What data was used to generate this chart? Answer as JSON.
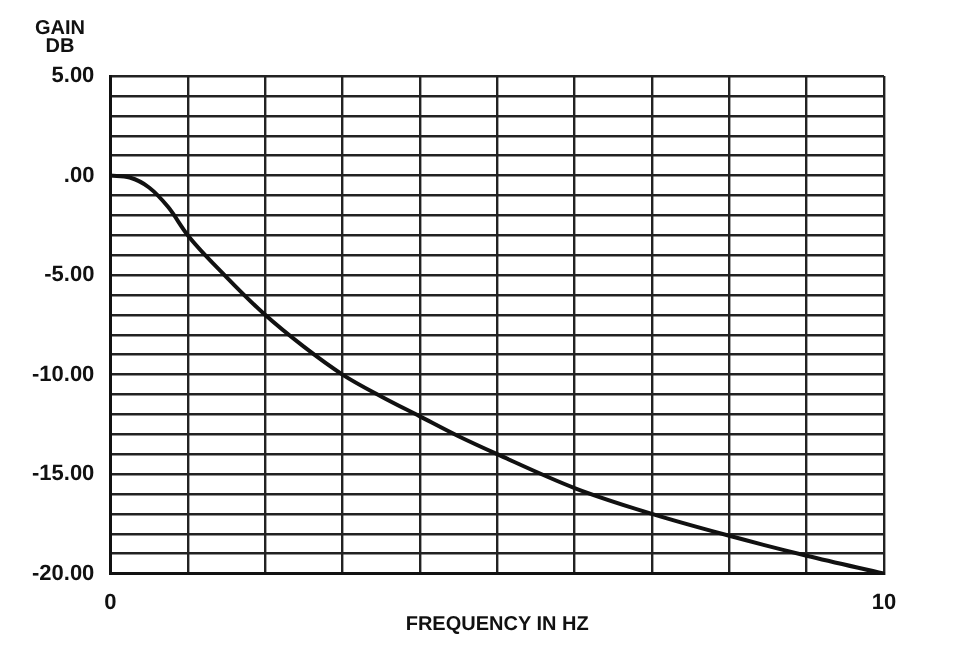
{
  "chart_data": {
    "type": "line",
    "xlabel": "FREQUENCY IN HZ",
    "ylabel": "GAIN DB",
    "x": [
      0,
      0.25,
      0.5,
      0.75,
      1,
      1.5,
      2,
      2.5,
      3,
      3.5,
      4,
      4.5,
      5,
      6,
      7,
      8,
      9,
      10
    ],
    "series": [
      {
        "color": "#111111",
        "values": [
          0,
          -0.1,
          -0.6,
          -1.6,
          -3,
          -5.1,
          -7,
          -8.6,
          -10,
          -11.1,
          -12.1,
          -13.1,
          -14,
          -15.7,
          -17,
          -18.1,
          -19.1,
          -20
        ]
      }
    ],
    "xlim": [
      0,
      10
    ],
    "ylim": [
      -20,
      5
    ],
    "xticks": [
      0,
      {
        "value": 1,
        "label": null
      },
      {
        "value": 2,
        "label": null
      },
      {
        "value": 3,
        "label": null
      },
      {
        "value": 4,
        "label": null
      },
      {
        "value": 5,
        "label": null
      },
      {
        "value": 6,
        "label": null
      },
      {
        "value": 7,
        "label": null
      },
      {
        "value": 8,
        "label": null
      },
      {
        "value": 9,
        "label": null
      },
      10
    ],
    "yticks": [
      {
        "value": -20,
        "label": "-20.00"
      },
      {
        "value": -19,
        "label": null
      },
      {
        "value": -18,
        "label": null
      },
      {
        "value": -17,
        "label": null
      },
      {
        "value": -16,
        "label": null
      },
      {
        "value": -15,
        "label": "-15.00"
      },
      {
        "value": -14,
        "label": null
      },
      {
        "value": -13,
        "label": null
      },
      {
        "value": -12,
        "label": null
      },
      {
        "value": -11,
        "label": null
      },
      {
        "value": -10,
        "label": "-10.00"
      },
      {
        "value": -9,
        "label": null
      },
      {
        "value": -8,
        "label": null
      },
      {
        "value": -7,
        "label": null
      },
      {
        "value": -6,
        "label": null
      },
      {
        "value": -5,
        "label": "-5.00"
      },
      {
        "value": -4,
        "label": null
      },
      {
        "value": -3,
        "label": null
      },
      {
        "value": -2,
        "label": null
      },
      {
        "value": -1,
        "label": null
      },
      {
        "value": 0,
        "label": ".00"
      },
      {
        "value": 1,
        "label": null
      },
      {
        "value": 2,
        "label": null
      },
      {
        "value": 3,
        "label": null
      },
      {
        "value": 4,
        "label": null
      },
      {
        "value": 5,
        "label": "5.00"
      }
    ],
    "grid": true,
    "legend": false,
    "marker": "none",
    "line_style": "solid"
  }
}
